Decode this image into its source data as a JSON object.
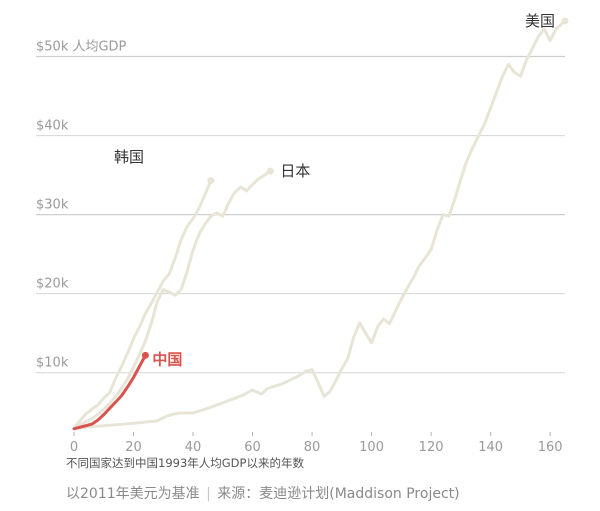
{
  "chart_data": {
    "type": "line",
    "y_unit_label": "人均GDP",
    "xlabel": "不同国家达到中国1993年人均GDP以来的年数",
    "ylabel": "",
    "xlim": [
      0,
      165
    ],
    "ylim": [
      2500,
      55000
    ],
    "x_ticks": [
      0,
      20,
      40,
      60,
      80,
      100,
      120,
      140,
      160
    ],
    "y_ticks": [
      {
        "value": 10000,
        "label": "$10k"
      },
      {
        "value": 20000,
        "label": "$20k"
      },
      {
        "value": 30000,
        "label": "$30k"
      },
      {
        "value": 40000,
        "label": "$40k"
      },
      {
        "value": 50000,
        "label": "$50k"
      }
    ],
    "series": [
      {
        "name": "美国",
        "color": "#e8e5d6",
        "points": [
          [
            0,
            3000
          ],
          [
            10,
            3300
          ],
          [
            20,
            3600
          ],
          [
            28,
            3900
          ],
          [
            31,
            4500
          ],
          [
            35,
            4900
          ],
          [
            40,
            4900
          ],
          [
            45,
            5500
          ],
          [
            50,
            6200
          ],
          [
            55,
            6900
          ],
          [
            57,
            7200
          ],
          [
            60,
            7800
          ],
          [
            63,
            7300
          ],
          [
            65,
            8000
          ],
          [
            70,
            8600
          ],
          [
            75,
            9500
          ],
          [
            78,
            10200
          ],
          [
            80,
            10400
          ],
          [
            82,
            8800
          ],
          [
            84,
            7000
          ],
          [
            86,
            7600
          ],
          [
            88,
            9000
          ],
          [
            90,
            10500
          ],
          [
            92,
            11800
          ],
          [
            94,
            14500
          ],
          [
            96,
            16300
          ],
          [
            98,
            15000
          ],
          [
            100,
            13800
          ],
          [
            102,
            15800
          ],
          [
            104,
            16800
          ],
          [
            106,
            16200
          ],
          [
            108,
            17800
          ],
          [
            110,
            19300
          ],
          [
            112,
            20700
          ],
          [
            114,
            22000
          ],
          [
            116,
            23500
          ],
          [
            118,
            24500
          ],
          [
            120,
            25600
          ],
          [
            122,
            28000
          ],
          [
            124,
            30000
          ],
          [
            126,
            29800
          ],
          [
            128,
            32000
          ],
          [
            130,
            34500
          ],
          [
            132,
            36800
          ],
          [
            134,
            38500
          ],
          [
            136,
            40000
          ],
          [
            138,
            41500
          ],
          [
            140,
            43500
          ],
          [
            142,
            45500
          ],
          [
            144,
            47500
          ],
          [
            146,
            49000
          ],
          [
            148,
            48000
          ],
          [
            150,
            47500
          ],
          [
            152,
            49500
          ],
          [
            154,
            51000
          ],
          [
            156,
            52500
          ],
          [
            158,
            53500
          ],
          [
            160,
            52000
          ],
          [
            162,
            53500
          ],
          [
            165,
            54500
          ]
        ]
      },
      {
        "name": "日本",
        "color": "#e8e5d6",
        "points": [
          [
            0,
            3000
          ],
          [
            3,
            3600
          ],
          [
            6,
            4200
          ],
          [
            9,
            5000
          ],
          [
            12,
            6100
          ],
          [
            15,
            7500
          ],
          [
            18,
            9200
          ],
          [
            21,
            11500
          ],
          [
            24,
            14000
          ],
          [
            26,
            16300
          ],
          [
            28,
            19000
          ],
          [
            30,
            20500
          ],
          [
            32,
            20200
          ],
          [
            34,
            19800
          ],
          [
            36,
            20500
          ],
          [
            38,
            22800
          ],
          [
            40,
            25500
          ],
          [
            42,
            27500
          ],
          [
            44,
            28800
          ],
          [
            46,
            29800
          ],
          [
            48,
            30200
          ],
          [
            50,
            29800
          ],
          [
            52,
            31500
          ],
          [
            54,
            32800
          ],
          [
            56,
            33500
          ],
          [
            58,
            33000
          ],
          [
            60,
            33800
          ],
          [
            62,
            34500
          ],
          [
            64,
            35000
          ],
          [
            66,
            35500
          ]
        ]
      },
      {
        "name": "韩国",
        "color": "#e8e5d6",
        "points": [
          [
            0,
            3000
          ],
          [
            2,
            3900
          ],
          [
            4,
            4800
          ],
          [
            6,
            5400
          ],
          [
            8,
            5900
          ],
          [
            10,
            6800
          ],
          [
            12,
            7500
          ],
          [
            14,
            9300
          ],
          [
            16,
            10800
          ],
          [
            18,
            12500
          ],
          [
            20,
            14300
          ],
          [
            22,
            15800
          ],
          [
            24,
            17500
          ],
          [
            26,
            18800
          ],
          [
            28,
            20200
          ],
          [
            30,
            21600
          ],
          [
            32,
            22500
          ],
          [
            34,
            24500
          ],
          [
            36,
            26800
          ],
          [
            38,
            28500
          ],
          [
            40,
            29500
          ],
          [
            42,
            30800
          ],
          [
            44,
            32500
          ],
          [
            46,
            34300
          ]
        ]
      },
      {
        "name": "中国",
        "color": "#d9534f",
        "points": [
          [
            0,
            2900
          ],
          [
            3,
            3200
          ],
          [
            6,
            3500
          ],
          [
            8,
            4000
          ],
          [
            10,
            4700
          ],
          [
            12,
            5500
          ],
          [
            14,
            6300
          ],
          [
            16,
            7100
          ],
          [
            18,
            8200
          ],
          [
            20,
            9400
          ],
          [
            22,
            10800
          ],
          [
            24,
            12200
          ]
        ]
      }
    ]
  },
  "footer": {
    "note": "以2011年美元为基准",
    "separator": "|",
    "source": "来源：麦迪逊计划(Maddison Project)"
  }
}
